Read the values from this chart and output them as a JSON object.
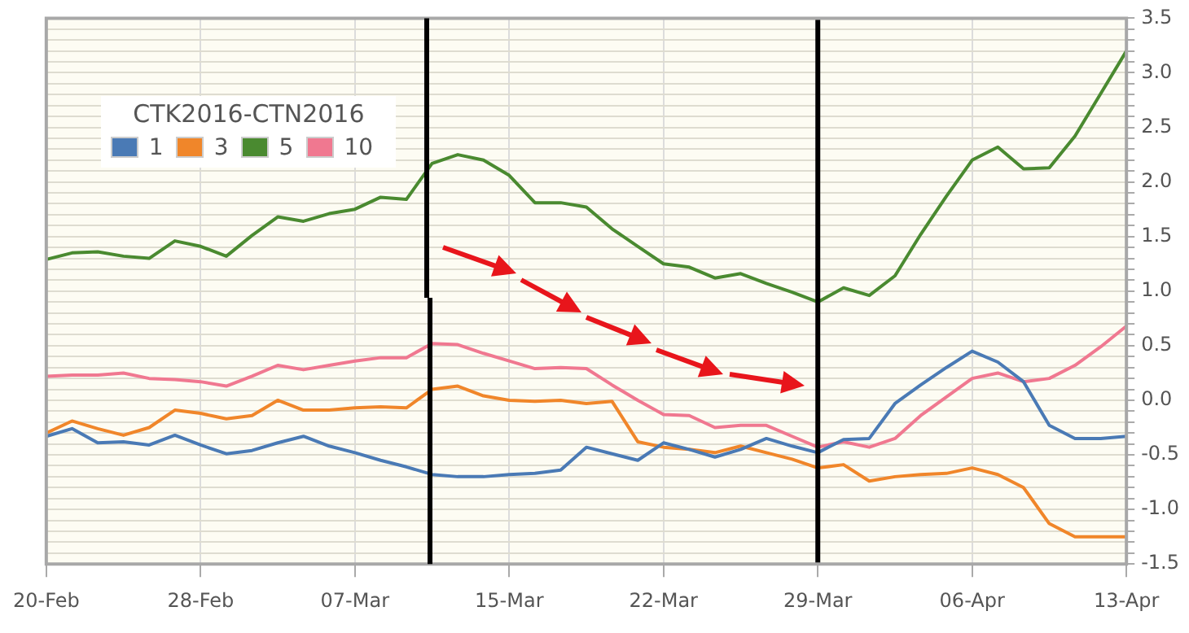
{
  "chart_data": {
    "type": "line",
    "legend_title": "CTK2016-CTN2016",
    "legend": "top left",
    "grid": true,
    "marker": "none",
    "line_style": "solid",
    "categories": [
      "20-Feb",
      null,
      null,
      null,
      null,
      null,
      "28-Feb",
      null,
      null,
      null,
      null,
      null,
      "07-Mar",
      null,
      null,
      null,
      null,
      null,
      "15-Mar",
      null,
      null,
      null,
      null,
      null,
      "22-Mar",
      null,
      null,
      null,
      null,
      null,
      "29-Mar",
      null,
      null,
      null,
      null,
      null,
      "06-Apr",
      null,
      null,
      null,
      null,
      null,
      "13-Apr"
    ],
    "ylim": [
      -1.5,
      3.5
    ],
    "yticks": [
      -1.5,
      {
        "value": -1.4,
        "label": null
      },
      {
        "value": -1.3,
        "label": null
      },
      {
        "value": -1.2,
        "label": null
      },
      {
        "value": -1.1,
        "label": null
      },
      {
        "value": -1,
        "label": "-1.0"
      },
      {
        "value": -0.9,
        "label": null
      },
      {
        "value": -0.8,
        "label": null
      },
      {
        "value": -0.7,
        "label": null
      },
      {
        "value": -0.6,
        "label": null
      },
      -0.5,
      {
        "value": -0.4,
        "label": null
      },
      {
        "value": -0.3,
        "label": null
      },
      {
        "value": -0.2,
        "label": null
      },
      {
        "value": -0.1,
        "label": null
      },
      {
        "value": 0,
        "label": "0.0"
      },
      {
        "value": 0.1,
        "label": null
      },
      {
        "value": 0.2,
        "label": null
      },
      {
        "value": 0.3,
        "label": null
      },
      {
        "value": 0.4,
        "label": null
      },
      0.5,
      {
        "value": 0.6,
        "label": null
      },
      {
        "value": 0.7,
        "label": null
      },
      {
        "value": 0.8,
        "label": null
      },
      {
        "value": 0.9,
        "label": null
      },
      {
        "value": 1,
        "label": "1.0"
      },
      {
        "value": 1.1,
        "label": null
      },
      {
        "value": 1.2,
        "label": null
      },
      {
        "value": 1.3,
        "label": null
      },
      {
        "value": 1.4,
        "label": null
      },
      1.5,
      {
        "value": 1.6,
        "label": null
      },
      {
        "value": 1.7,
        "label": null
      },
      {
        "value": 1.8,
        "label": null
      },
      {
        "value": 1.9,
        "label": null
      },
      {
        "value": 2,
        "label": "2.0"
      },
      {
        "value": 2.1,
        "label": null
      },
      {
        "value": 2.2,
        "label": null
      },
      {
        "value": 2.3,
        "label": null
      },
      {
        "value": 2.4,
        "label": null
      },
      2.5,
      {
        "value": 2.6,
        "label": null
      },
      {
        "value": 2.7,
        "label": null
      },
      {
        "value": 2.8,
        "label": null
      },
      {
        "value": 2.9,
        "label": null
      },
      {
        "value": 3,
        "label": "3.0"
      },
      {
        "value": 3.1,
        "label": null
      },
      {
        "value": 3.2,
        "label": null
      },
      {
        "value": 3.3,
        "label": null
      },
      {
        "value": 3.4,
        "label": null
      },
      3.5
    ],
    "ref_lines": [
      {
        "axis": "x",
        "value": "29-Mar",
        "color": "#000000"
      }
    ],
    "series": [
      {
        "name": "1",
        "color": "#4a7ab5",
        "values": [
          -0.33,
          -0.26,
          -0.39,
          -0.38,
          -0.41,
          -0.32,
          -0.41,
          -0.49,
          -0.46,
          -0.39,
          -0.33,
          -0.42,
          -0.48,
          -0.55,
          -0.61,
          -0.68,
          -0.7,
          -0.7,
          -0.68,
          -0.67,
          -0.64,
          -0.43,
          -0.49,
          -0.55,
          -0.39,
          -0.45,
          -0.52,
          -0.45,
          -0.35,
          -0.42,
          -0.48,
          -0.36,
          -0.35,
          -0.03,
          0.14,
          0.3,
          0.45,
          0.35,
          0.17,
          -0.23,
          -0.35,
          -0.35,
          -0.33
        ]
      },
      {
        "name": "3",
        "color": "#f0862a",
        "values": [
          -0.3,
          -0.19,
          -0.26,
          -0.32,
          -0.25,
          -0.09,
          -0.12,
          -0.17,
          -0.14,
          0,
          -0.09,
          -0.09,
          -0.07,
          -0.06,
          -0.07,
          0.1,
          0.13,
          0.04,
          0,
          -0.01,
          0,
          -0.03,
          -0.01,
          -0.38,
          -0.43,
          -0.45,
          -0.48,
          -0.42,
          -0.48,
          -0.54,
          -0.62,
          -0.59,
          -0.74,
          -0.7,
          -0.68,
          -0.67,
          -0.62,
          -0.68,
          -0.8,
          -1.13,
          -1.25,
          -1.25,
          -1.25
        ]
      },
      {
        "name": "5",
        "color": "#4a8a30",
        "values": [
          1.29,
          1.35,
          1.36,
          1.32,
          1.3,
          1.46,
          1.41,
          1.32,
          1.51,
          1.68,
          1.64,
          1.71,
          1.75,
          1.86,
          1.84,
          2.17,
          2.25,
          2.2,
          2.06,
          1.81,
          1.81,
          1.77,
          1.57,
          1.41,
          1.25,
          1.22,
          1.12,
          1.16,
          1.07,
          0.99,
          0.9,
          1.03,
          0.96,
          1.14,
          1.52,
          1.87,
          2.2,
          2.32,
          2.12,
          2.13,
          2.42,
          2.81,
          3.2
        ]
      },
      {
        "name": "10",
        "color": "#f07890",
        "values": [
          0.22,
          0.23,
          0.23,
          0.25,
          0.2,
          0.19,
          0.17,
          0.13,
          0.22,
          0.32,
          0.28,
          0.32,
          0.36,
          0.39,
          0.39,
          0.52,
          0.51,
          0.43,
          0.36,
          0.29,
          0.3,
          0.29,
          0.14,
          0,
          -0.13,
          -0.14,
          -0.25,
          -0.23,
          -0.23,
          -0.33,
          -0.43,
          -0.38,
          -0.43,
          -0.35,
          -0.14,
          0.03,
          0.2,
          0.25,
          0.17,
          0.2,
          0.32,
          0.49,
          0.68
        ]
      }
    ]
  }
}
